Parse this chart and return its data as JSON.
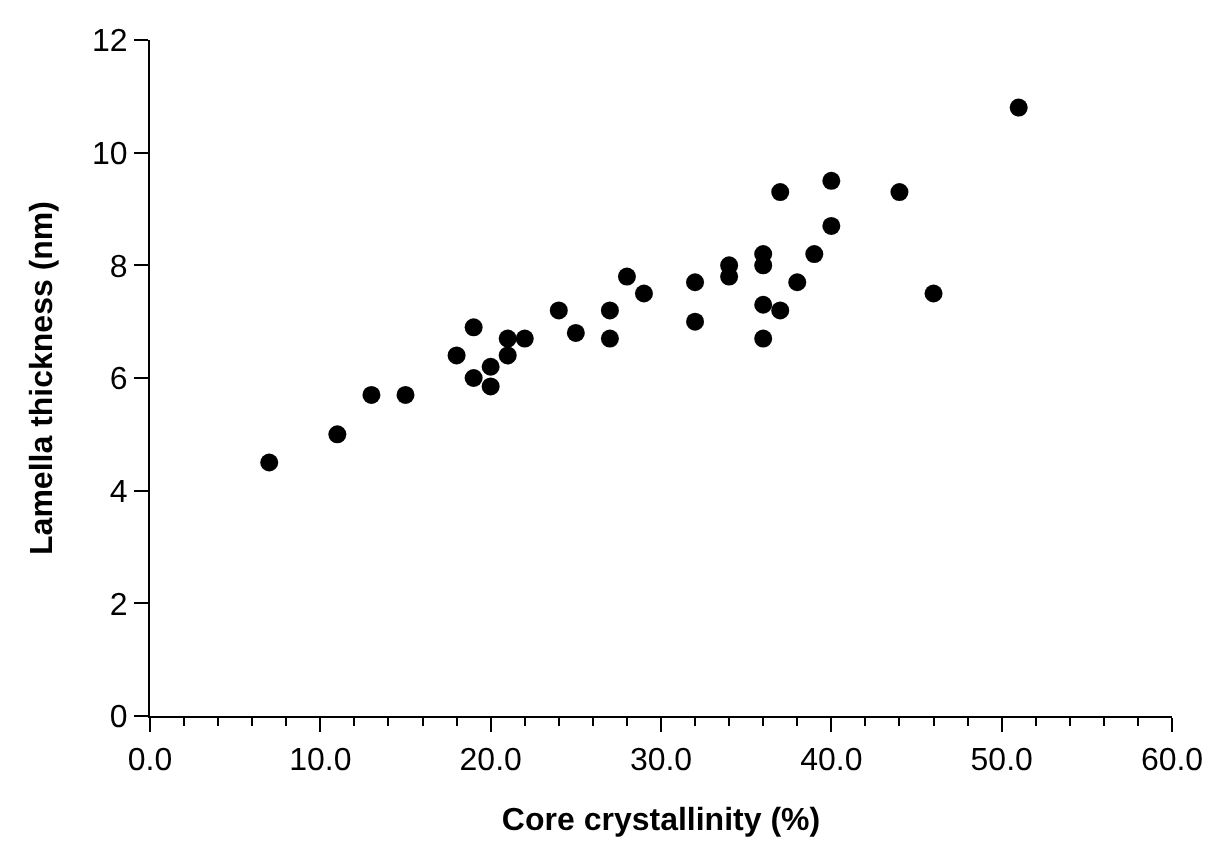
{
  "chart_data": {
    "type": "scatter",
    "xlabel": "Core crystallinity (%)",
    "ylabel": "Lamella thickness (nm)",
    "x": [
      7,
      11,
      13,
      15,
      18,
      19,
      19,
      20,
      20,
      21,
      21,
      22,
      24,
      25,
      27,
      27,
      28,
      29,
      32,
      32,
      34,
      34,
      36,
      36,
      36,
      36,
      37,
      37,
      38,
      39,
      40,
      40,
      44,
      46,
      51
    ],
    "values": [
      4.5,
      5.0,
      5.7,
      5.7,
      6.4,
      6.9,
      6.0,
      6.2,
      5.85,
      6.7,
      6.4,
      6.7,
      7.2,
      6.8,
      7.2,
      6.7,
      7.8,
      7.5,
      7.7,
      7.0,
      8.0,
      7.8,
      8.2,
      8.0,
      7.3,
      6.7,
      9.3,
      7.2,
      7.7,
      8.2,
      9.5,
      8.7,
      9.3,
      7.5,
      10.8
    ],
    "color": "#000000",
    "marker": "circle",
    "xlim": [
      0,
      60
    ],
    "xticks": [
      {
        "value": 0,
        "label": "0.0"
      },
      {
        "value": 10,
        "label": "10.0"
      },
      {
        "value": 20,
        "label": "20.0"
      },
      {
        "value": 30,
        "label": "30.0"
      },
      {
        "value": 40,
        "label": "40.0"
      },
      {
        "value": 50,
        "label": "50.0"
      },
      {
        "value": 60,
        "label": "60.0"
      }
    ],
    "ylim": [
      0,
      12
    ],
    "yticks": [
      0,
      2,
      4,
      6,
      8,
      10,
      12
    ]
  }
}
